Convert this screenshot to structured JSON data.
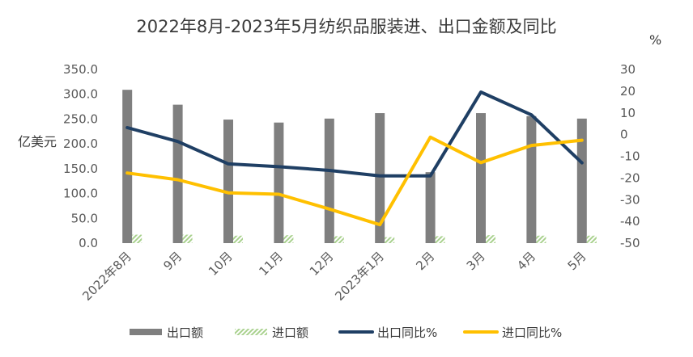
{
  "chart_data": {
    "type": "bar",
    "title": "2022年8月-2023年5月纺织品服装进、出口金额及同比",
    "ylabel_left": "亿美元",
    "ylabel_right": "%",
    "categories": [
      "2022年8月",
      "9月",
      "10月",
      "11月",
      "12月",
      "2023年1月",
      "2月",
      "3月",
      "4月",
      "5月"
    ],
    "left_axis": {
      "min": 0,
      "max": 350,
      "step": 50,
      "tick_labels": [
        "0.0",
        "50.0",
        "100.0",
        "150.0",
        "200.0",
        "250.0",
        "300.0",
        "350.0"
      ]
    },
    "right_axis": {
      "min": -50,
      "max": 30,
      "step": 10,
      "tick_labels": [
        "-50",
        "-40",
        "-30",
        "-20",
        "-10",
        "0",
        "10",
        "20",
        "30"
      ]
    },
    "series": [
      {
        "name": "出口额",
        "type": "bar",
        "axis": "left",
        "color": "#7f7f7f",
        "values": [
          309,
          279,
          249,
          243,
          251,
          262,
          143,
          262,
          256,
          251
        ]
      },
      {
        "name": "进口额",
        "type": "bar",
        "axis": "left",
        "color": "#a9d18e",
        "pattern": "hatch",
        "values": [
          17,
          17,
          15,
          16,
          14,
          12,
          14,
          16,
          15,
          15
        ]
      },
      {
        "name": "出口同比%",
        "type": "line",
        "axis": "right",
        "color": "#1f3f64",
        "values": [
          3.2,
          -3.2,
          -13.5,
          -14.8,
          -16.5,
          -19.0,
          -19.0,
          19.6,
          9.1,
          -13.0
        ]
      },
      {
        "name": "进口同比%",
        "type": "line",
        "axis": "right",
        "color": "#ffc000",
        "values": [
          -17.7,
          -20.8,
          -26.8,
          -27.5,
          -34.3,
          -41.5,
          -1.2,
          -12.9,
          -5.0,
          -2.6
        ]
      }
    ],
    "legend_position": "bottom"
  }
}
